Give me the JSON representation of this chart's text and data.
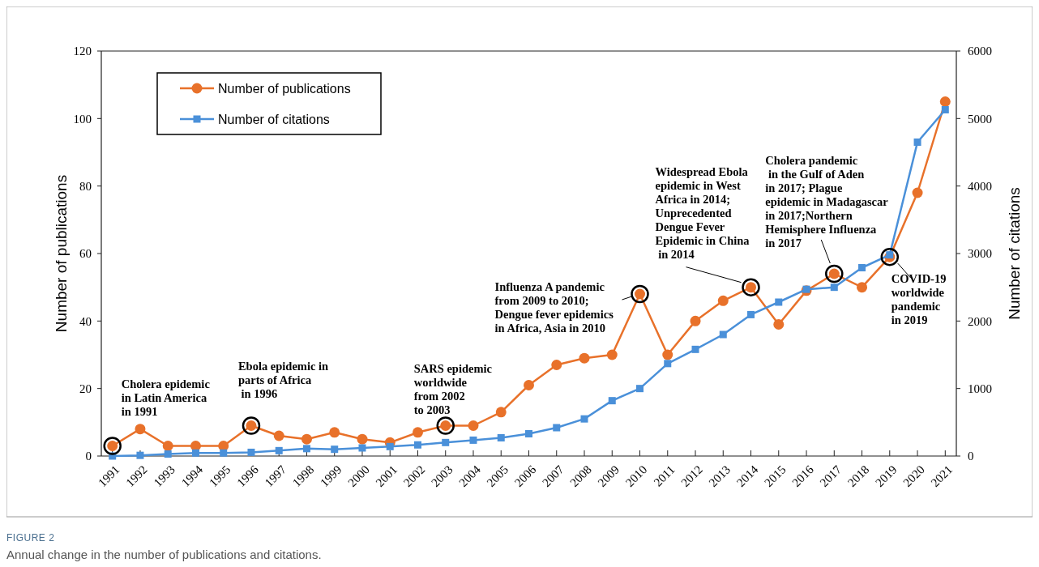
{
  "chart_data": {
    "type": "line",
    "title": "FIGURE 2",
    "subtitle": "Annual change in the number of publications and citations.",
    "ylabel": "Number of publications",
    "y2label": "Number of citations",
    "categories": [
      "1991",
      "1992",
      "1993",
      "1994",
      "1995",
      "1996",
      "1997",
      "1998",
      "1999",
      "2000",
      "2001",
      "2002",
      "2003",
      "2004",
      "2005",
      "2006",
      "2007",
      "2008",
      "2009",
      "2010",
      "2011",
      "2012",
      "2013",
      "2014",
      "2015",
      "2016",
      "2017",
      "2018",
      "2019",
      "2020",
      "2021"
    ],
    "series": [
      {
        "name": "Number of publications",
        "color": "#e8712a",
        "marker": "circle",
        "values": [
          3,
          8,
          3,
          3,
          3,
          9,
          6,
          5,
          7,
          5,
          4,
          7,
          9,
          9,
          13,
          21,
          27,
          29,
          30,
          48,
          30,
          40,
          46,
          50,
          39,
          49,
          54,
          50,
          59,
          78,
          105
        ]
      },
      {
        "name": "Number of citations",
        "color": "#4a90d9",
        "marker": "square",
        "axis": "y2",
        "values": [
          0,
          10,
          30,
          45,
          45,
          55,
          80,
          110,
          100,
          120,
          140,
          165,
          200,
          235,
          270,
          330,
          420,
          550,
          820,
          1000,
          1370,
          1580,
          1800,
          2095,
          2280,
          2470,
          2500,
          2790,
          2980,
          4650,
          5130
        ]
      }
    ],
    "ylim": [
      0,
      120
    ],
    "yticks": [
      0,
      20,
      40,
      60,
      80,
      100,
      120
    ],
    "y2lim": [
      0,
      6000
    ],
    "y2ticks": [
      0,
      1000,
      2000,
      3000,
      4000,
      5000,
      6000
    ],
    "legend": "top left",
    "grid": false,
    "annotations": [
      {
        "text": "Cholera epidemic\nin Latin America\nin 1991",
        "x": "1991",
        "y": 3
      },
      {
        "text": "Ebola epidemic in\nparts of Africa\n in 1996",
        "x": "1996",
        "y": 9
      },
      {
        "text": "SARS epidemic\nworldwide\nfrom 2002\nto 2003",
        "x": "2003",
        "y": 9
      },
      {
        "text": "Influenza A pandemic\nfrom 2009 to 2010;\nDengue fever epidemics\nin Africa, Asia in 2010",
        "x": "2010",
        "y": 48
      },
      {
        "text": "Widespread Ebola\nepidemic in West\nAfrica in 2014;\nUnprecedented\nDengue Fever\nEpidemic in China\n in 2014",
        "x": "2014",
        "y": 50
      },
      {
        "text": "Cholera pandemic\n in the Gulf of Aden\nin 2017; Plague\nepidemic in Madagascar\nin 2017;Northern\nHemisphere Influenza\nin 2017",
        "x": "2017",
        "y": 54
      },
      {
        "text": "COVID-19\nworldwide\npandemic\nin 2019",
        "x": "2019",
        "y": 59
      }
    ]
  }
}
